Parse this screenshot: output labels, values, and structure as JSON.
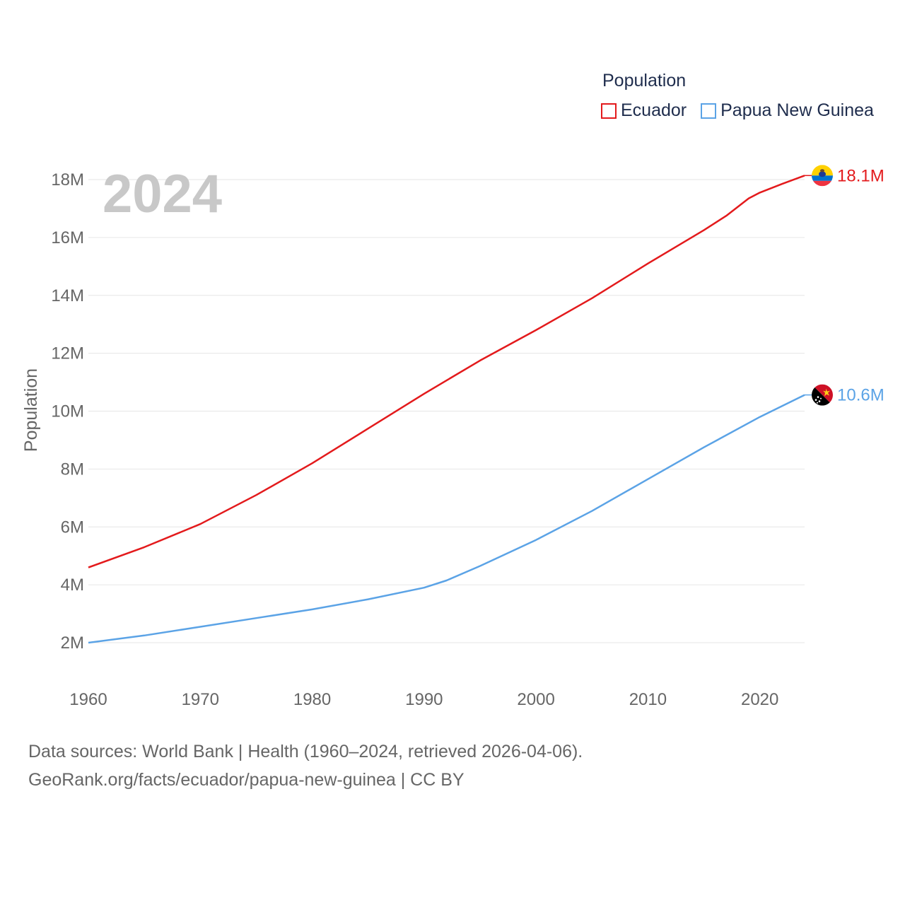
{
  "legend": {
    "title": "Population",
    "items": [
      {
        "label": "Ecuador",
        "color": "#e31a1c"
      },
      {
        "label": "Papua New Guinea",
        "color": "#5ba3e6"
      }
    ]
  },
  "footer": {
    "line1": "Data sources: World Bank | Health (1960–2024, retrieved 2026-04-06).",
    "line2": "GeoRank.org/facts/ecuador/papua-new-guinea | CC BY"
  },
  "chart_data": {
    "type": "line",
    "title": "Population",
    "year_label": "2024",
    "xlabel": "",
    "ylabel": "Population",
    "xlim": [
      1960,
      2024
    ],
    "ylim": [
      0,
      18500000
    ],
    "x_ticks": [
      1960,
      1970,
      1980,
      1990,
      2000,
      2010,
      2020
    ],
    "y_ticks": [
      {
        "value": 2000000,
        "label": "2M"
      },
      {
        "value": 4000000,
        "label": "4M"
      },
      {
        "value": 6000000,
        "label": "6M"
      },
      {
        "value": 8000000,
        "label": "8M"
      },
      {
        "value": 10000000,
        "label": "10M"
      },
      {
        "value": 12000000,
        "label": "12M"
      },
      {
        "value": 14000000,
        "label": "14M"
      },
      {
        "value": 16000000,
        "label": "16M"
      },
      {
        "value": 18000000,
        "label": "18M"
      }
    ],
    "grid": true,
    "legend_position": "top-right",
    "series": [
      {
        "name": "Ecuador",
        "color": "#e31a1c",
        "end_label": "18.1M",
        "x": [
          1960,
          1965,
          1970,
          1975,
          1980,
          1985,
          1990,
          1995,
          2000,
          2005,
          2010,
          2015,
          2017,
          2019,
          2020,
          2022,
          2024
        ],
        "values": [
          4600000,
          5300000,
          6100000,
          7100000,
          8200000,
          9400000,
          10600000,
          11750000,
          12800000,
          13900000,
          15100000,
          16250000,
          16750000,
          17350000,
          17550000,
          17850000,
          18140000
        ]
      },
      {
        "name": "Papua New Guinea",
        "color": "#5ba3e6",
        "end_label": "10.6M",
        "x": [
          1960,
          1965,
          1970,
          1975,
          1980,
          1985,
          1990,
          1992,
          1995,
          2000,
          2005,
          2010,
          2015,
          2020,
          2024
        ],
        "values": [
          2000000,
          2250000,
          2550000,
          2850000,
          3150000,
          3500000,
          3900000,
          4150000,
          4650000,
          5550000,
          6550000,
          7650000,
          8750000,
          9800000,
          10560000
        ]
      }
    ]
  }
}
